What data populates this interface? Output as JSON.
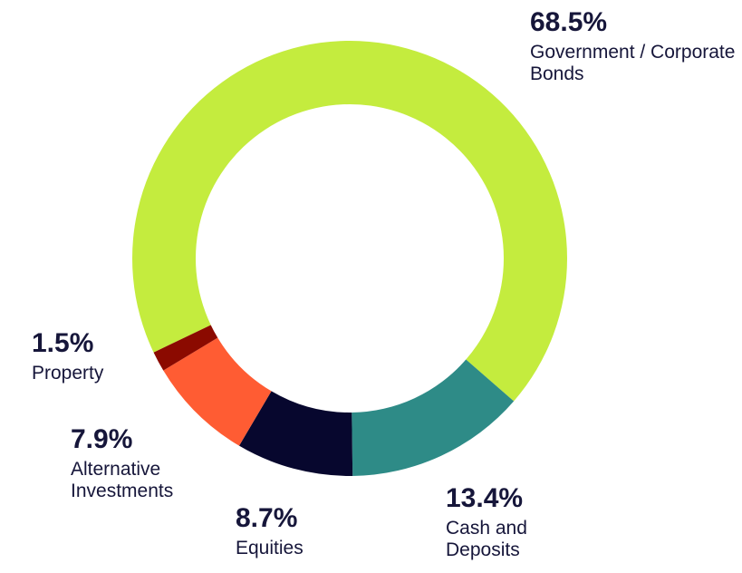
{
  "chart_data": {
    "type": "donut",
    "categories": [
      "Government / Corporate Bonds",
      "Cash and Deposits",
      "Equities",
      "Alternative Investments",
      "Property"
    ],
    "values": [
      68.5,
      13.4,
      8.7,
      7.9,
      1.5
    ],
    "value_labels": [
      "68.5%",
      "13.4%",
      "8.7%",
      "7.9%",
      "1.5%"
    ],
    "colors": [
      "#c4ec3e",
      "#2e8b87",
      "#07072e",
      "#ff5c33",
      "#8b0a00"
    ]
  }
}
